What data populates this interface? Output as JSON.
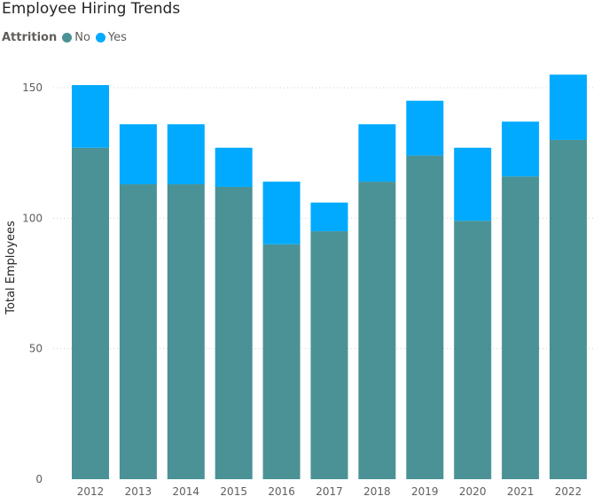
{
  "chart_data": {
    "type": "bar",
    "stacked": true,
    "title": "Employee Hiring Trends",
    "legend": {
      "title": "Attrition",
      "placement": "top-left"
    },
    "ylabel": "Total Employees",
    "xlabel": "",
    "ylim": [
      0,
      160
    ],
    "yticks": [
      0,
      50,
      100,
      150
    ],
    "grid": true,
    "categories": [
      "2012",
      "2013",
      "2014",
      "2015",
      "2016",
      "2017",
      "2018",
      "2019",
      "2020",
      "2021",
      "2022"
    ],
    "series": [
      {
        "name": "No",
        "color": "#4a9295",
        "values": [
          127,
          113,
          113,
          112,
          90,
          95,
          114,
          124,
          99,
          116,
          130
        ]
      },
      {
        "name": "Yes",
        "color": "#01aaff",
        "values": [
          24,
          23,
          23,
          15,
          24,
          11,
          22,
          21,
          28,
          21,
          25
        ]
      }
    ]
  }
}
